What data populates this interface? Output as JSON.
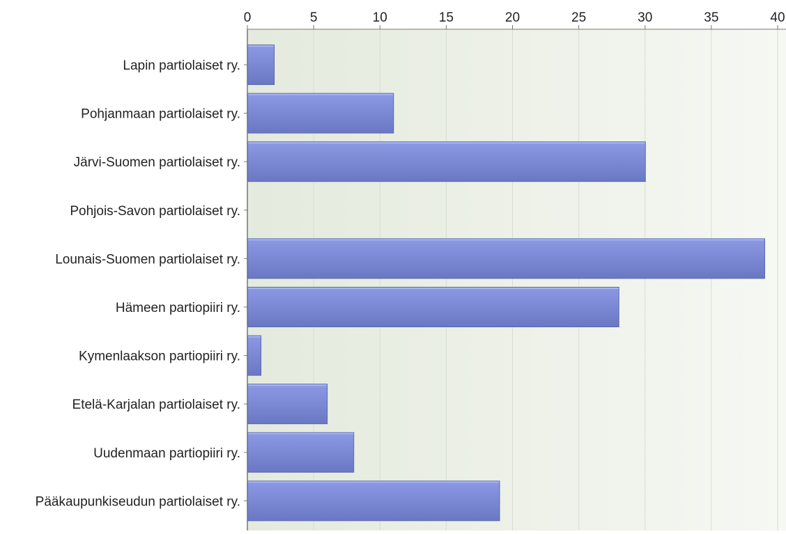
{
  "chart_data": {
    "type": "bar",
    "orientation": "horizontal",
    "title": "",
    "xlabel": "",
    "ylabel": "",
    "categories": [
      "Lapin partiolaiset ry.",
      "Pohjanmaan partiolaiset ry.",
      "Järvi-Suomen partiolaiset ry.",
      "Pohjois-Savon partiolaiset ry.",
      "Lounais-Suomen partiolaiset ry.",
      "Hämeen partiopiiri ry.",
      "Kymenlaakson partiopiiri ry.",
      "Etelä-Karjalan partiolaiset ry.",
      "Uudenmaan partiopiiri ry.",
      "Pääkaupunkiseudun partiolaiset ry."
    ],
    "values": [
      2,
      11,
      30,
      0,
      39,
      28,
      1,
      6,
      8,
      19
    ],
    "xlim": [
      0,
      40
    ],
    "x_ticks": [
      "0",
      "5",
      "10",
      "15",
      "20",
      "25",
      "30",
      "35",
      "40"
    ],
    "axis_position": "top",
    "grid": true,
    "legend": "none",
    "colors": {
      "bar_top": "#8c9ae6",
      "bar_bottom": "#6a78c4",
      "bar_edge": "#5a66ad",
      "plot_bg_left": "#e4eadd",
      "plot_bg_right": "#f6f8f3",
      "grid": "#d8ddd2",
      "axis": "#777777"
    }
  }
}
